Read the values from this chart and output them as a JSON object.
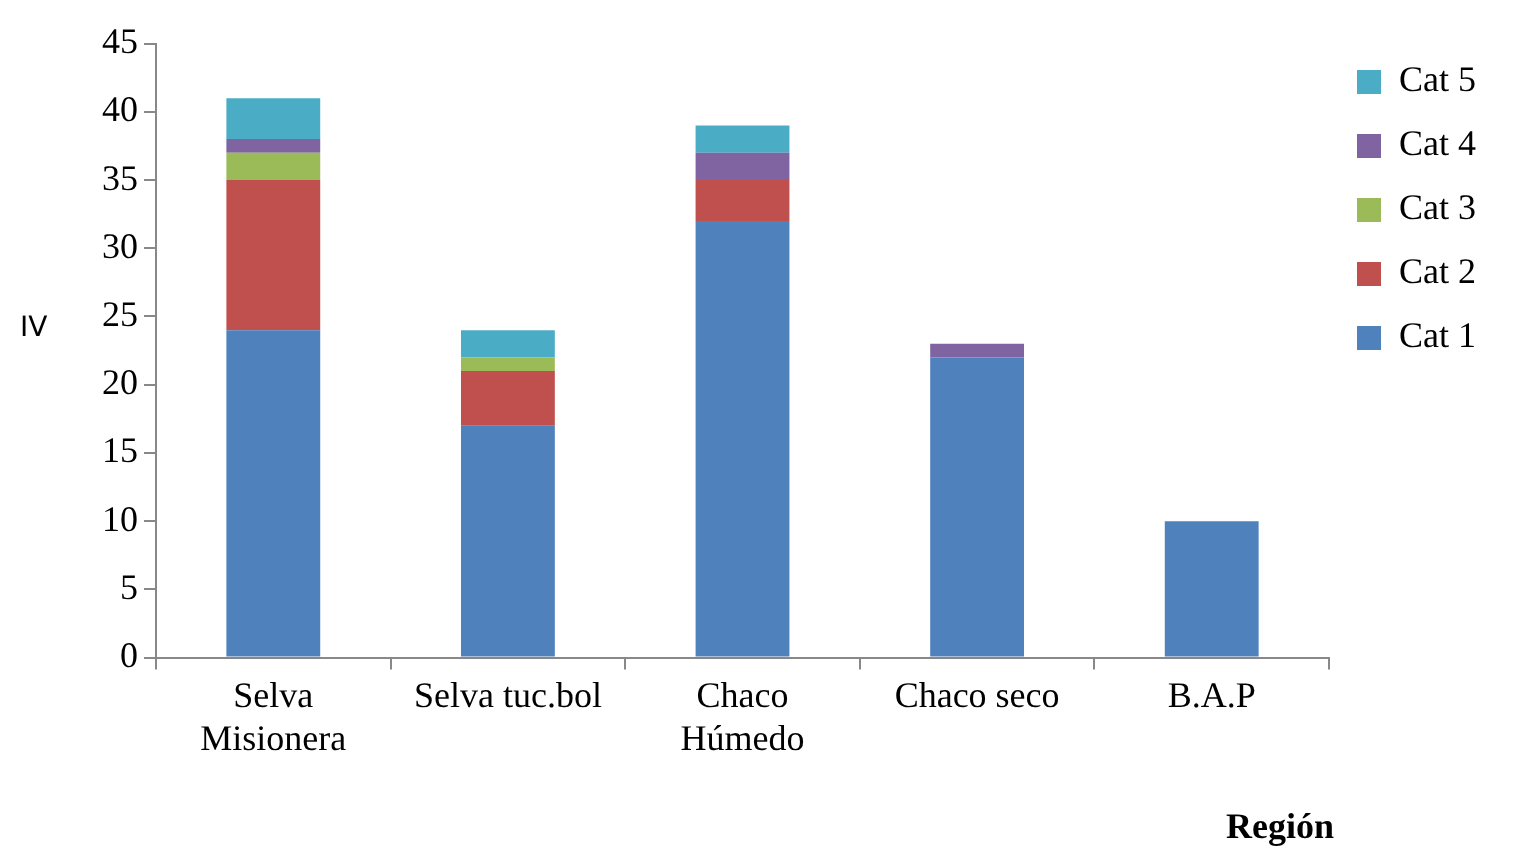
{
  "chart_data": {
    "type": "bar",
    "stacked": true,
    "ylabel": "IV",
    "xlabel": "Región",
    "categories": [
      "Selva\nMisionera",
      "Selva tuc.bol",
      "Chaco\nHúmedo",
      "Chaco seco",
      "B.A.P"
    ],
    "series": [
      {
        "name": "Cat 1",
        "color": "#4f81bd",
        "values": [
          24,
          17,
          32,
          22,
          10
        ]
      },
      {
        "name": "Cat 2",
        "color": "#c0504d",
        "values": [
          11,
          4,
          3,
          0,
          0
        ]
      },
      {
        "name": "Cat 3",
        "color": "#9bbb59",
        "values": [
          2,
          1,
          0,
          0,
          0
        ]
      },
      {
        "name": "Cat 4",
        "color": "#8064a2",
        "values": [
          1,
          0,
          2,
          1,
          0
        ]
      },
      {
        "name": "Cat 5",
        "color": "#4bacc6",
        "values": [
          3,
          2,
          2,
          0,
          0
        ]
      }
    ],
    "ylim": [
      0,
      45
    ],
    "yticks": [
      0,
      5,
      10,
      15,
      20,
      25,
      30,
      35,
      40,
      45
    ],
    "grid": false,
    "legend": "right"
  }
}
